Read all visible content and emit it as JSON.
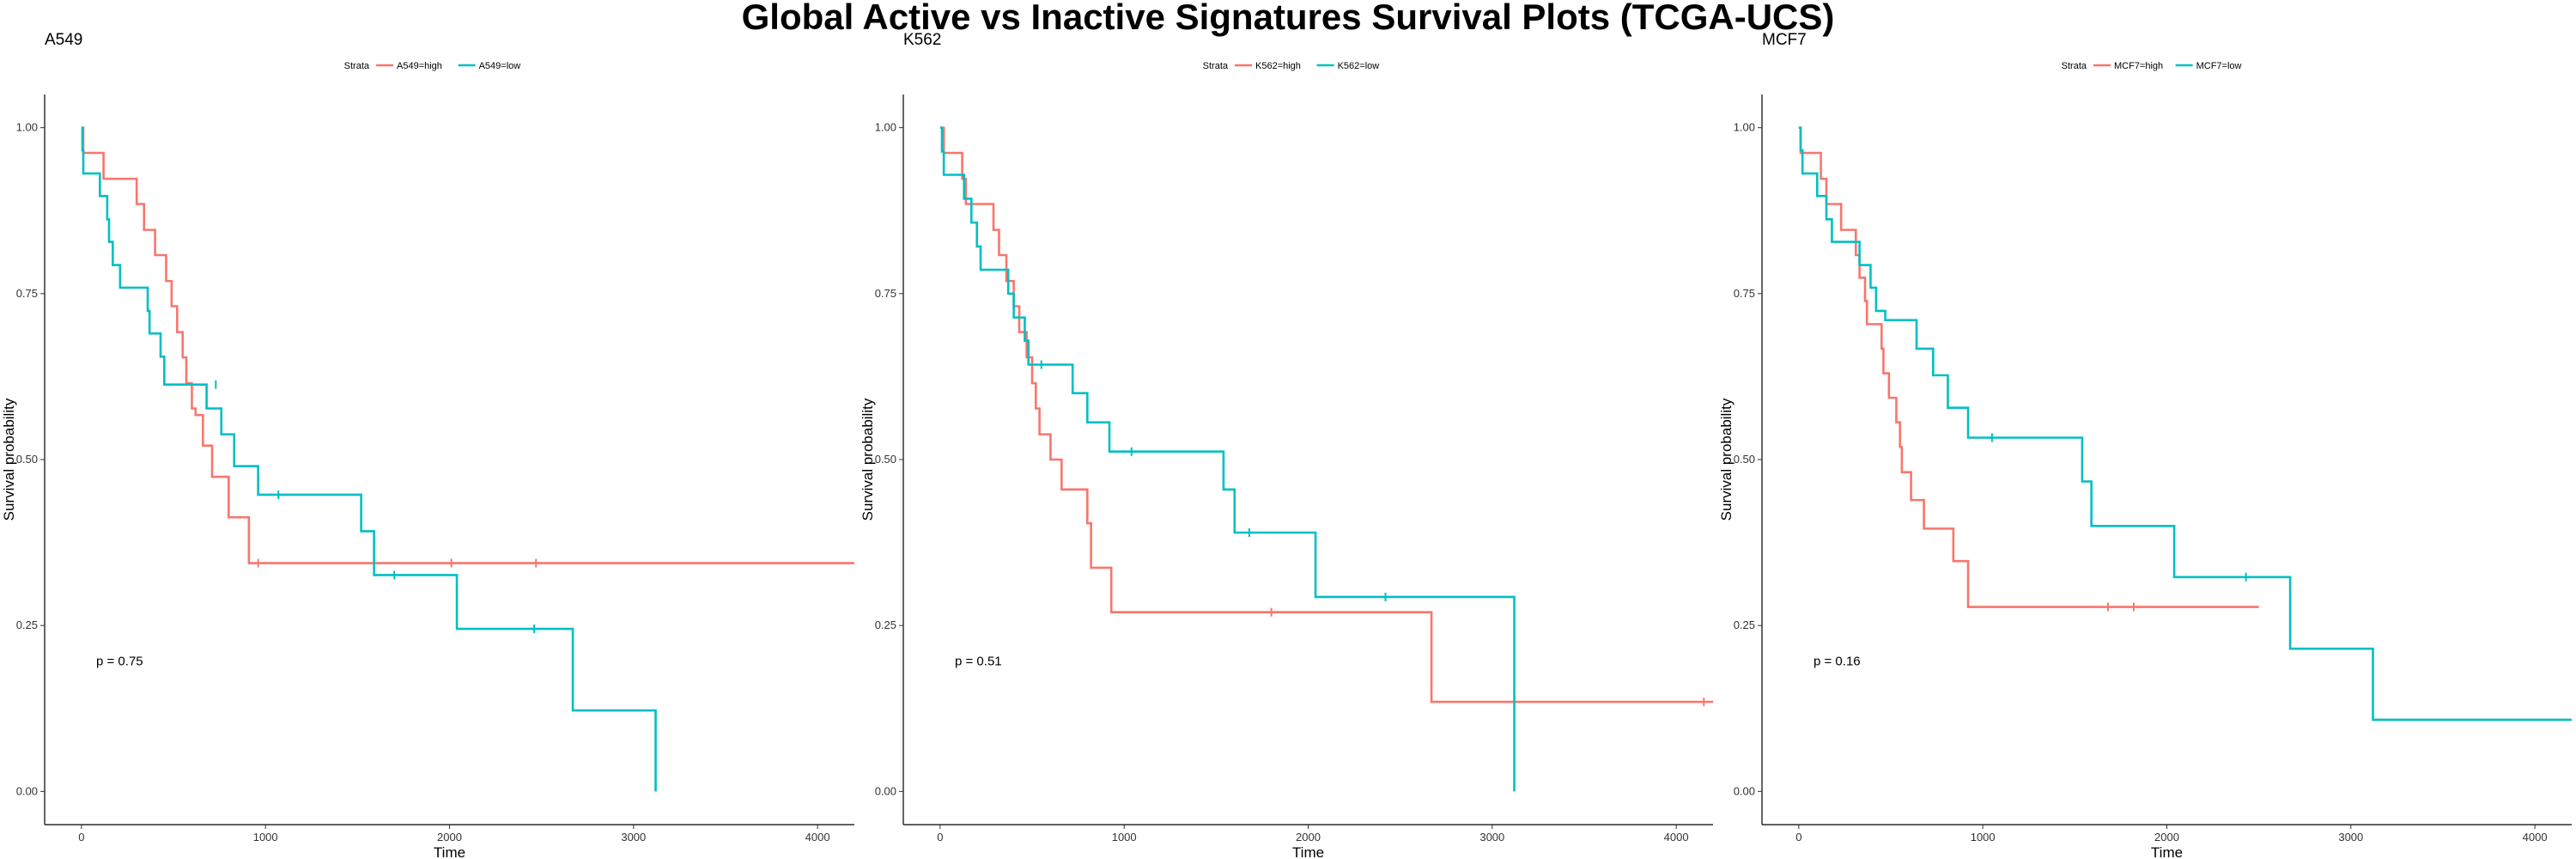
{
  "figure": {
    "title": "Global Active vs Inactive Signatures Survival Plots (TCGA-UCS)"
  },
  "colors": {
    "high": "#F8766D",
    "low": "#00BFC4",
    "axis": "#000000"
  },
  "chart_data": [
    {
      "type": "line",
      "subtype": "kaplan-meier",
      "title": "A549",
      "xlabel": "Time",
      "ylabel": "Survival probability",
      "xlim": [
        -200,
        4200
      ],
      "ylim": [
        -0.05,
        1.05
      ],
      "xticks": [
        0,
        1000,
        2000,
        3000,
        4000
      ],
      "yticks": [
        "0.00",
        "0.25",
        "0.50",
        "0.75",
        "1.00"
      ],
      "legend": {
        "title": "Strata",
        "placement": "top"
      },
      "annotation": "p = 0.75",
      "series": [
        {
          "name": "A549=high",
          "color": "#F8766D",
          "steps": [
            [
              0,
              1.0
            ],
            [
              10,
              0.962
            ],
            [
              120,
              0.923
            ],
            [
              300,
              0.885
            ],
            [
              340,
              0.846
            ],
            [
              400,
              0.808
            ],
            [
              460,
              0.769
            ],
            [
              490,
              0.731
            ],
            [
              520,
              0.692
            ],
            [
              550,
              0.654
            ],
            [
              570,
              0.615
            ],
            [
              600,
              0.577
            ],
            [
              620,
              0.567
            ],
            [
              660,
              0.521
            ],
            [
              710,
              0.474
            ],
            [
              800,
              0.413
            ],
            [
              910,
              0.344
            ],
            [
              4200,
              0.344
            ]
          ],
          "censors": [
            [
              960,
              0.344
            ],
            [
              2010,
              0.344
            ],
            [
              2470,
              0.344
            ]
          ]
        },
        {
          "name": "A549=low",
          "color": "#00BFC4",
          "steps": [
            [
              0,
              1.0
            ],
            [
              5,
              0.966
            ],
            [
              10,
              0.931
            ],
            [
              100,
              0.897
            ],
            [
              140,
              0.862
            ],
            [
              150,
              0.828
            ],
            [
              170,
              0.793
            ],
            [
              210,
              0.759
            ],
            [
              360,
              0.724
            ],
            [
              370,
              0.69
            ],
            [
              430,
              0.655
            ],
            [
              450,
              0.613
            ],
            [
              680,
              0.577
            ],
            [
              760,
              0.538
            ],
            [
              830,
              0.49
            ],
            [
              960,
              0.447
            ],
            [
              1520,
              0.392
            ],
            [
              1590,
              0.326
            ],
            [
              2040,
              0.245
            ],
            [
              2670,
              0.122
            ],
            [
              3120,
              0.0
            ]
          ],
          "censors": [
            [
              730,
              0.613
            ],
            [
              1070,
              0.447
            ],
            [
              1700,
              0.326
            ],
            [
              2460,
              0.245
            ]
          ]
        }
      ]
    },
    {
      "type": "line",
      "subtype": "kaplan-meier",
      "title": "K562",
      "xlabel": "Time",
      "ylabel": "Survival probability",
      "xlim": [
        -200,
        4200
      ],
      "ylim": [
        -0.05,
        1.05
      ],
      "xticks": [
        0,
        1000,
        2000,
        3000,
        4000
      ],
      "yticks": [
        "0.00",
        "0.25",
        "0.50",
        "0.75",
        "1.00"
      ],
      "legend": {
        "title": "Strata",
        "placement": "top"
      },
      "annotation": "p = 0.51",
      "series": [
        {
          "name": "K562=high",
          "color": "#F8766D",
          "steps": [
            [
              0,
              1.0
            ],
            [
              20,
              0.962
            ],
            [
              120,
              0.923
            ],
            [
              140,
              0.885
            ],
            [
              290,
              0.846
            ],
            [
              320,
              0.808
            ],
            [
              360,
              0.769
            ],
            [
              400,
              0.731
            ],
            [
              430,
              0.692
            ],
            [
              470,
              0.654
            ],
            [
              500,
              0.615
            ],
            [
              520,
              0.577
            ],
            [
              540,
              0.538
            ],
            [
              600,
              0.5
            ],
            [
              660,
              0.455
            ],
            [
              800,
              0.404
            ],
            [
              820,
              0.337
            ],
            [
              930,
              0.27
            ],
            [
              2670,
              0.135
            ],
            [
              4200,
              0.135
            ]
          ],
          "censors": [
            [
              1800,
              0.27
            ],
            [
              4150,
              0.135
            ]
          ]
        },
        {
          "name": "K562=low",
          "color": "#00BFC4",
          "steps": [
            [
              0,
              1.0
            ],
            [
              10,
              0.964
            ],
            [
              20,
              0.929
            ],
            [
              130,
              0.893
            ],
            [
              170,
              0.857
            ],
            [
              200,
              0.821
            ],
            [
              220,
              0.786
            ],
            [
              370,
              0.75
            ],
            [
              400,
              0.714
            ],
            [
              460,
              0.679
            ],
            [
              480,
              0.643
            ],
            [
              720,
              0.6
            ],
            [
              800,
              0.556
            ],
            [
              920,
              0.512
            ],
            [
              1540,
              0.455
            ],
            [
              1600,
              0.39
            ],
            [
              2040,
              0.293
            ],
            [
              3120,
              0.0
            ]
          ],
          "censors": [
            [
              550,
              0.643
            ],
            [
              1040,
              0.512
            ],
            [
              1680,
              0.39
            ],
            [
              2420,
              0.293
            ]
          ]
        }
      ]
    },
    {
      "type": "line",
      "subtype": "kaplan-meier",
      "title": "MCF7",
      "xlabel": "Time",
      "ylabel": "Survival probability",
      "xlim": [
        -200,
        4200
      ],
      "ylim": [
        -0.05,
        1.05
      ],
      "xticks": [
        0,
        1000,
        2000,
        3000,
        4000
      ],
      "yticks": [
        "0.00",
        "0.25",
        "0.50",
        "0.75",
        "1.00"
      ],
      "legend": {
        "title": "Strata",
        "placement": "top"
      },
      "annotation": "p = 0.16",
      "series": [
        {
          "name": "MCF7=high",
          "color": "#F8766D",
          "steps": [
            [
              0,
              1.0
            ],
            [
              10,
              0.962
            ],
            [
              120,
              0.923
            ],
            [
              150,
              0.885
            ],
            [
              230,
              0.846
            ],
            [
              310,
              0.808
            ],
            [
              330,
              0.774
            ],
            [
              360,
              0.739
            ],
            [
              370,
              0.704
            ],
            [
              450,
              0.667
            ],
            [
              460,
              0.63
            ],
            [
              490,
              0.593
            ],
            [
              530,
              0.556
            ],
            [
              550,
              0.519
            ],
            [
              560,
              0.481
            ],
            [
              610,
              0.439
            ],
            [
              680,
              0.396
            ],
            [
              840,
              0.347
            ],
            [
              920,
              0.278
            ],
            [
              2500,
              0.278
            ]
          ],
          "censors": [
            [
              1680,
              0.278
            ],
            [
              1820,
              0.278
            ]
          ]
        },
        {
          "name": "MCF7=low",
          "color": "#00BFC4",
          "steps": [
            [
              0,
              1.0
            ],
            [
              10,
              0.966
            ],
            [
              20,
              0.931
            ],
            [
              100,
              0.897
            ],
            [
              150,
              0.862
            ],
            [
              180,
              0.828
            ],
            [
              330,
              0.793
            ],
            [
              390,
              0.759
            ],
            [
              420,
              0.724
            ],
            [
              470,
              0.71
            ],
            [
              640,
              0.667
            ],
            [
              730,
              0.627
            ],
            [
              810,
              0.578
            ],
            [
              920,
              0.533
            ],
            [
              1540,
              0.467
            ],
            [
              1590,
              0.4
            ],
            [
              2040,
              0.323
            ],
            [
              2670,
              0.215
            ],
            [
              3120,
              0.108
            ],
            [
              4200,
              0.108
            ]
          ],
          "censors": [
            [
              1050,
              0.533
            ],
            [
              2430,
              0.323
            ]
          ]
        }
      ]
    }
  ]
}
